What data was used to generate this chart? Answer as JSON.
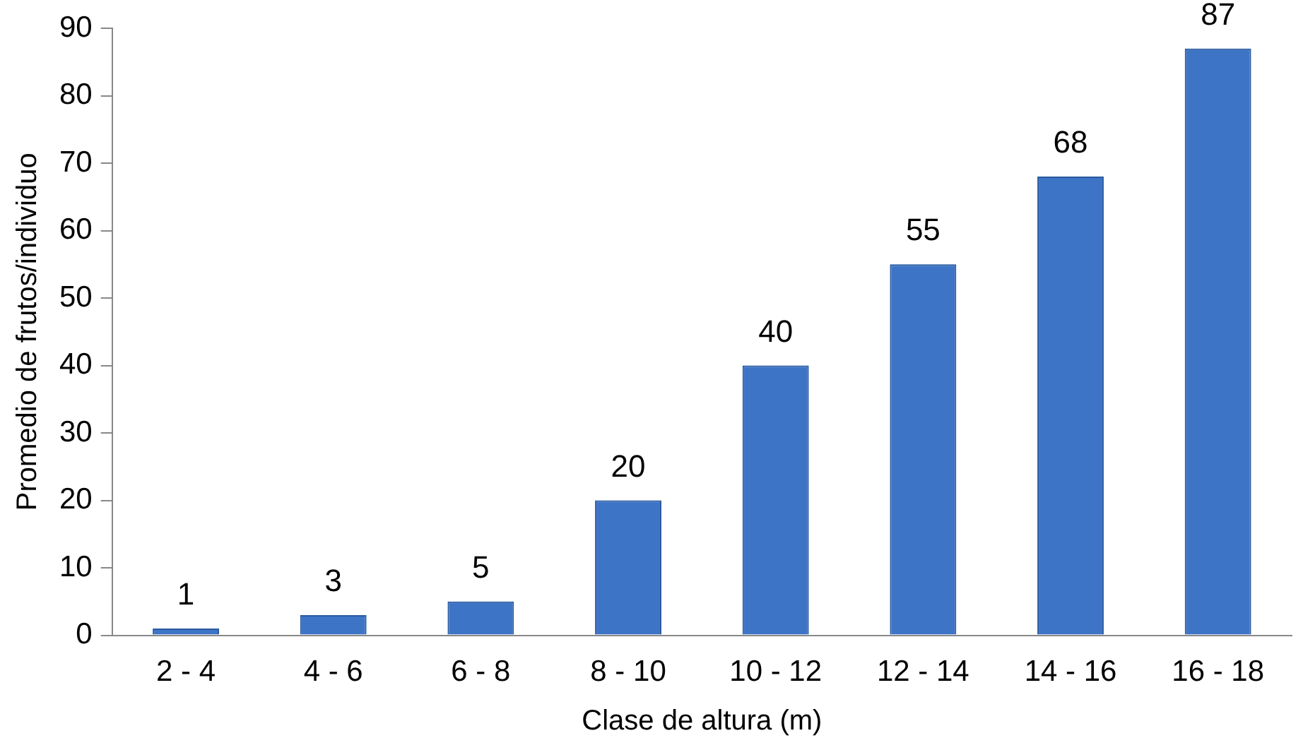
{
  "chart_data": {
    "type": "bar",
    "xlabel": "Clase de altura (m)",
    "ylabel": "Promedio de frutos/individuo",
    "categories": [
      "2 - 4",
      "4 - 6",
      "6 - 8",
      "8 - 10",
      "10 - 12",
      "12 - 14",
      "14 - 16",
      "16 - 18"
    ],
    "values": [
      1,
      3,
      5,
      20,
      40,
      55,
      68,
      87
    ],
    "color": "#3d74c6",
    "ylim": [
      0,
      90
    ],
    "yticks": [
      0,
      10,
      20,
      30,
      40,
      50,
      60,
      70,
      80,
      90
    ],
    "grid": false,
    "data_labels": true
  }
}
